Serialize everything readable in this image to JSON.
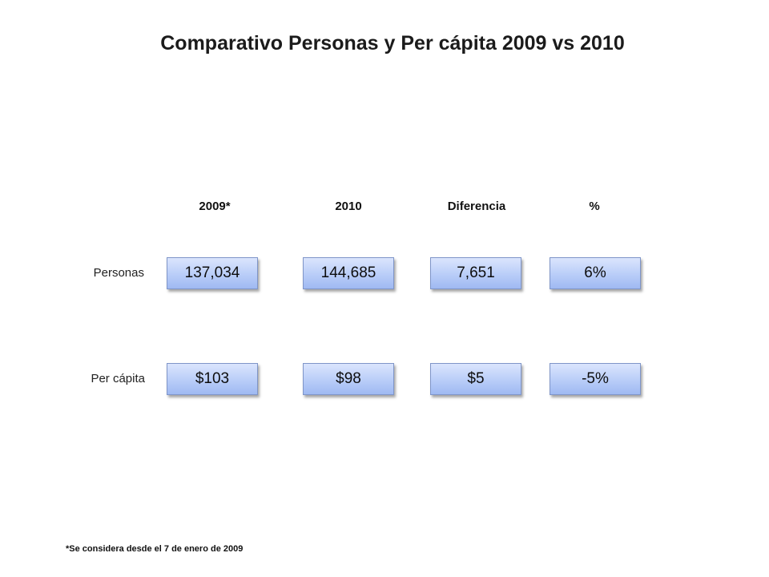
{
  "title": "Comparativo Personas y Per cápita 2009 vs 2010",
  "columns": [
    "2009*",
    "2010",
    "Diferencia",
    "%"
  ],
  "rows": [
    {
      "label": "Personas",
      "values": [
        "137,034",
        "144,685",
        "7,651",
        "6%"
      ]
    },
    {
      "label": "Per cápita",
      "values": [
        "$103",
        "$98",
        "$5",
        "-5%"
      ]
    }
  ],
  "footnote": "*Se considera desde el 7 de enero de 2009",
  "colors": {
    "cell_border": "#7f95c8",
    "cell_fill_top": "#dbe5fd",
    "cell_fill_bottom": "#9fb9f2"
  }
}
